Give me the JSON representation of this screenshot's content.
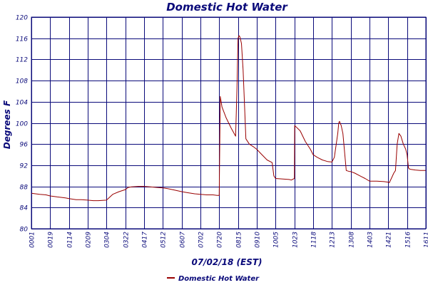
{
  "colors": {
    "grid": "#0a0a7a",
    "text": "#0a0a7a",
    "series": "#990000",
    "background": "#ffffff"
  },
  "chart_data": {
    "type": "line",
    "title": "Domestic Hot Water",
    "xlabel": "07/02/18 (EST)",
    "ylabel": "Degrees F",
    "ylim": [
      80,
      120
    ],
    "yticks": [
      80,
      84,
      88,
      92,
      96,
      100,
      104,
      108,
      112,
      116,
      120
    ],
    "xlim": [
      "00:01",
      "16:11"
    ],
    "xticks": [
      "00:01",
      "00:19",
      "01:14",
      "02:09",
      "03:04",
      "03:22",
      "04:17",
      "05:12",
      "06:07",
      "07:02",
      "07:20",
      "08:15",
      "09:10",
      "10:05",
      "10:23",
      "11:18",
      "12:13",
      "13:08",
      "14:03",
      "14:21",
      "15:16",
      "16:11"
    ],
    "xtick_labels": [
      "0001",
      "0019",
      "0114",
      "0209",
      "0304",
      "0322",
      "0417",
      "0512",
      "0607",
      "0702",
      "0720",
      "0815",
      "0910",
      "1005",
      "1023",
      "1118",
      "1213",
      "1308",
      "1403",
      "1421",
      "1516",
      "1611"
    ],
    "grid": true,
    "legend_position": "bottom",
    "series": [
      {
        "name": "Domestic Hot Water",
        "x": [
          "00:01",
          "00:09",
          "00:15",
          "00:19",
          "00:40",
          "00:55",
          "01:05",
          "01:14",
          "01:35",
          "01:50",
          "02:09",
          "02:25",
          "02:40",
          "03:04",
          "03:10",
          "03:16",
          "03:22",
          "03:30",
          "03:40",
          "04:00",
          "04:17",
          "04:35",
          "04:55",
          "05:12",
          "05:25",
          "05:40",
          "06:07",
          "06:25",
          "06:45",
          "07:02",
          "07:08",
          "07:14",
          "07:18",
          "07:20",
          "07:23",
          "07:28",
          "07:40",
          "07:55",
          "08:08",
          "08:12",
          "08:15",
          "08:18",
          "08:21",
          "08:25",
          "08:30",
          "08:38",
          "08:48",
          "09:00",
          "09:10",
          "09:25",
          "09:40",
          "09:55",
          "10:00",
          "10:05",
          "10:12",
          "10:18",
          "10:20",
          "10:23",
          "10:24",
          "10:40",
          "10:55",
          "11:10",
          "11:18",
          "11:30",
          "11:45",
          "12:00",
          "12:13",
          "12:20",
          "12:30",
          "12:33",
          "12:35",
          "12:40",
          "12:45",
          "12:55",
          "13:05",
          "13:08",
          "13:20",
          "13:35",
          "13:50",
          "14:03",
          "14:10",
          "14:17",
          "14:21",
          "14:24",
          "14:30",
          "14:37",
          "14:42",
          "14:47",
          "14:52",
          "14:58",
          "15:05",
          "15:12",
          "15:16",
          "15:20",
          "15:23",
          "15:28",
          "15:40",
          "15:55",
          "16:11"
        ],
        "values": [
          86.7,
          86.5,
          86.4,
          86.2,
          86.0,
          85.9,
          85.8,
          85.7,
          85.5,
          85.5,
          85.4,
          85.3,
          85.3,
          85.4,
          86.5,
          87.0,
          87.4,
          87.8,
          87.9,
          88.0,
          88.0,
          87.9,
          87.8,
          87.7,
          87.6,
          87.4,
          87.0,
          86.8,
          86.6,
          86.5,
          86.4,
          86.4,
          86.3,
          86.3,
          105.0,
          103.0,
          101.0,
          99.0,
          97.5,
          106.5,
          116.0,
          116.5,
          116.2,
          115.0,
          110.0,
          97.0,
          96.0,
          95.5,
          95.0,
          94.0,
          93.0,
          92.5,
          90.0,
          89.5,
          89.4,
          89.3,
          89.2,
          89.5,
          99.5,
          98.5,
          96.5,
          95.0,
          94.0,
          93.5,
          93.0,
          92.7,
          92.6,
          93.5,
          98.0,
          100.0,
          100.3,
          99.5,
          98.0,
          91.0,
          90.8,
          90.8,
          90.5,
          90.0,
          89.5,
          89.0,
          89.0,
          88.9,
          88.8,
          88.7,
          89.5,
          90.5,
          91.0,
          96.0,
          98.0,
          97.5,
          96.0,
          95.0,
          94.0,
          91.5,
          91.3,
          91.2,
          91.1,
          91.0,
          91.0
        ]
      }
    ]
  }
}
